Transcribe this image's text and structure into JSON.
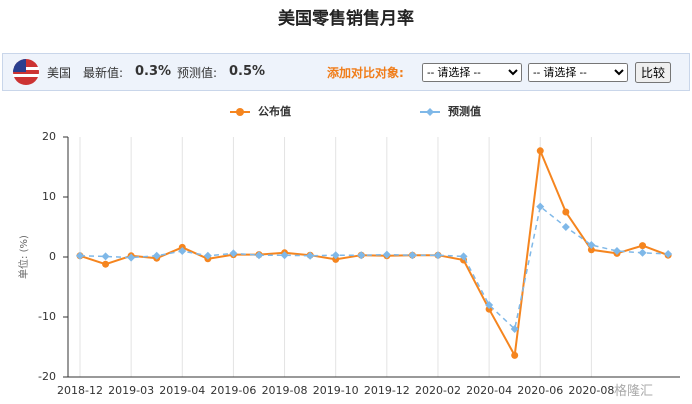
{
  "header": {
    "country": "美国",
    "latest_label": "最新值:",
    "latest_value": "0.3%",
    "forecast_label": "预测值:",
    "forecast_value": "0.5%",
    "compare_label": "添加对比对象:",
    "select_placeholder": "-- 请选择 --",
    "compare_button": "比较"
  },
  "watermark": "格隆汇",
  "chart_data": {
    "type": "line",
    "title": "美国零售销售月率",
    "y_label": "单位: (%)",
    "categories": [
      "2018-12",
      null,
      "2019-03",
      null,
      "2019-04",
      null,
      "2019-06",
      null,
      "2019-08",
      null,
      "2019-10",
      null,
      "2019-12",
      null,
      "2020-02",
      null,
      "2020-04",
      null,
      "2020-06",
      null,
      "2020-08",
      null,
      null,
      null
    ],
    "series": [
      {
        "name": "公布值",
        "color": "#f5851f",
        "dashed": false,
        "values": [
          0.2,
          -1.2,
          0.2,
          -0.2,
          1.6,
          -0.3,
          0.4,
          0.4,
          0.7,
          0.3,
          -0.4,
          0.3,
          0.2,
          0.3,
          0.3,
          -0.5,
          -8.7,
          -16.4,
          17.7,
          7.5,
          1.2,
          0.6,
          1.9,
          0.3
        ]
      },
      {
        "name": "预测值",
        "color": "#7fb8e8",
        "dashed": true,
        "values": [
          0.2,
          0.1,
          -0.1,
          0.2,
          1.0,
          0.2,
          0.6,
          0.3,
          0.3,
          0.2,
          0.3,
          0.3,
          0.4,
          0.3,
          0.3,
          0.1,
          -8.0,
          -12.0,
          8.4,
          5.0,
          2.0,
          1.0,
          0.7,
          0.5
        ]
      }
    ],
    "ylim": [
      -20,
      20
    ],
    "yticks": [
      -20,
      -10,
      0,
      10,
      20
    ],
    "grid": "x"
  }
}
